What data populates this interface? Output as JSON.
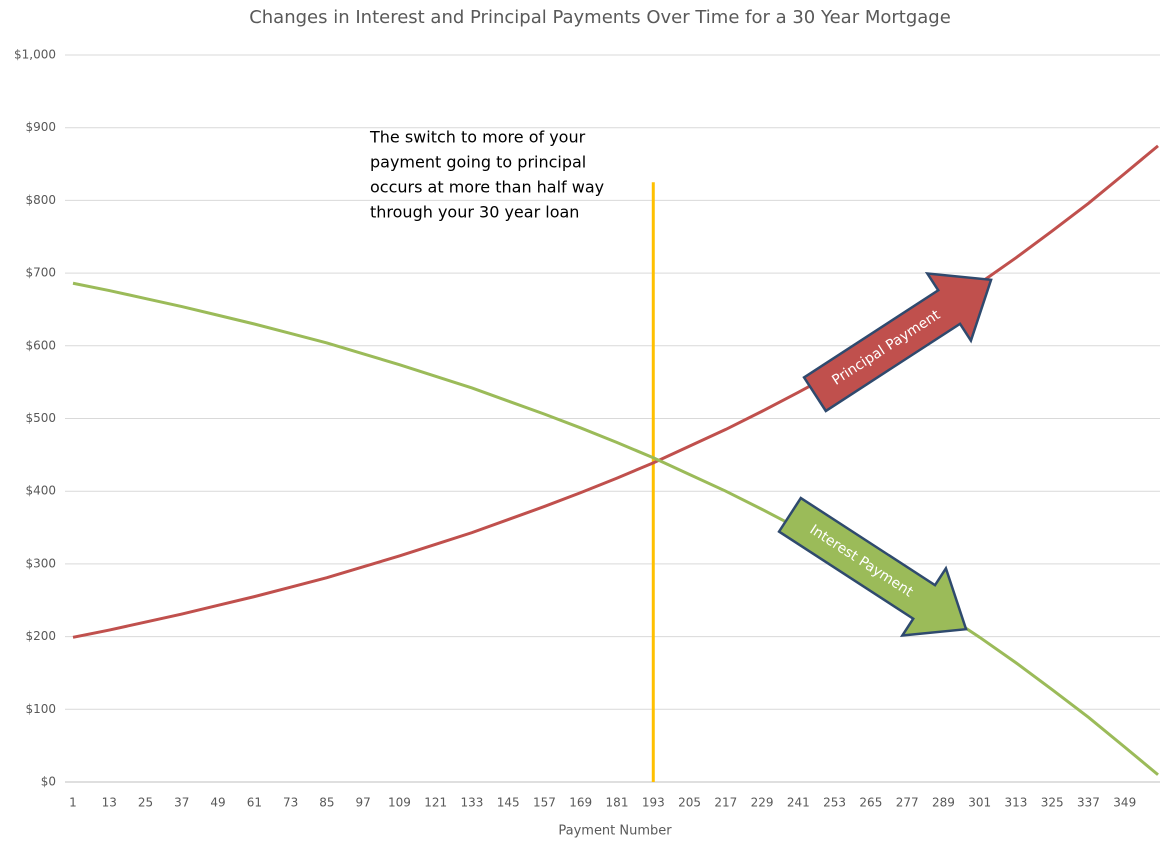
{
  "chart_data": {
    "type": "line",
    "title": "Changes in Interest and Principal Payments Over Time for a 30 Year Mortgage",
    "xlabel": "Payment Number",
    "x": [
      1,
      13,
      25,
      37,
      49,
      61,
      73,
      85,
      97,
      109,
      121,
      133,
      145,
      157,
      169,
      181,
      193,
      205,
      217,
      229,
      241,
      253,
      265,
      277,
      289,
      301,
      313,
      325,
      337,
      349,
      360
    ],
    "xlim": [
      1,
      360
    ],
    "xticks": [
      1,
      13,
      25,
      37,
      49,
      61,
      73,
      85,
      97,
      109,
      121,
      133,
      145,
      157,
      169,
      181,
      193,
      205,
      217,
      229,
      241,
      253,
      265,
      277,
      289,
      301,
      313,
      325,
      337,
      349
    ],
    "ylim": [
      0,
      1000
    ],
    "yticks": [
      {
        "value": 0,
        "label": "$0"
      },
      {
        "value": 100,
        "label": "$100"
      },
      {
        "value": 200,
        "label": "$200"
      },
      {
        "value": 300,
        "label": "$300"
      },
      {
        "value": 400,
        "label": "$400"
      },
      {
        "value": 500,
        "label": "$500"
      },
      {
        "value": 600,
        "label": "$600"
      },
      {
        "value": 700,
        "label": "$700"
      },
      {
        "value": 800,
        "label": "$800"
      },
      {
        "value": 900,
        "label": "$900"
      },
      {
        "value": 1000,
        "label": "$1,000"
      }
    ],
    "grid": true,
    "series": [
      {
        "name": "Principal Payment",
        "color": "#c0504d",
        "values": [
          199,
          209,
          220,
          231,
          243,
          255,
          268,
          281,
          296,
          311,
          327,
          343,
          361,
          379,
          398,
          418,
          439,
          462,
          485,
          510,
          536,
          563,
          592,
          622,
          653,
          686,
          721,
          758,
          796,
          837,
          875
        ]
      },
      {
        "name": "Interest Payment",
        "color": "#9bbb59",
        "values": [
          686,
          676,
          665,
          654,
          642,
          630,
          617,
          604,
          589,
          574,
          558,
          542,
          524,
          506,
          487,
          467,
          446,
          423,
          400,
          375,
          349,
          322,
          293,
          263,
          232,
          199,
          164,
          127,
          89,
          48,
          10
        ]
      }
    ],
    "vline": {
      "x": 193,
      "y": [
        0,
        825
      ],
      "color": "#ffc000"
    },
    "annotation": [
      "The switch to more of your",
      "payment going to principal",
      "occurs at more than half way",
      "through your 30 year loan"
    ]
  }
}
